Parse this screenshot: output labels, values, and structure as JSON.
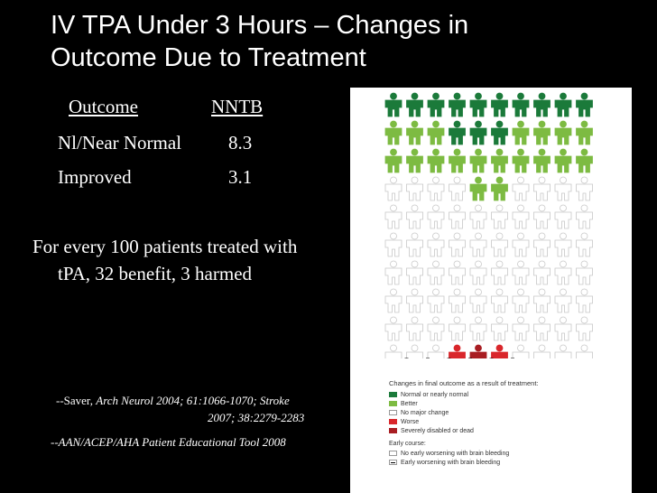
{
  "slide": {
    "title_line1": "IV TPA Under 3 Hours – Changes in",
    "title_line2": "Outcome Due to Treatment"
  },
  "table": {
    "headers": [
      "Outcome",
      "NNTB"
    ],
    "rows": [
      {
        "label": "Nl/Near Normal",
        "value": "8.3"
      },
      {
        "label": "Improved",
        "value": "3.1"
      }
    ]
  },
  "summary": "For every 100 patients treated with tPA, 32 benefit, 3 harmed",
  "citations": {
    "c1_prefix": "--Saver, ",
    "c1_italic": "Arch Neurol 2004; 61:1066-1070; Stroke",
    "c1_line2": "2007; 38:2279-2283",
    "c2": "--AAN/ACEP/AHA Patient Educational Tool 2008"
  },
  "figure": {
    "colors": {
      "normal": "#1b7a3a",
      "better": "#7dbb42",
      "nochange": "#ffffff",
      "worse": "#d9262b",
      "severe": "#a81d22"
    },
    "legend": {
      "heading": "Changes in final outcome as a result of treatment:",
      "items": [
        {
          "label": "Normal or nearly normal",
          "color": "#1b7a3a"
        },
        {
          "label": "Better",
          "color": "#7dbb42"
        },
        {
          "label": "No major change",
          "color": "#ffffff"
        },
        {
          "label": "Worse",
          "color": "#d9262b"
        },
        {
          "label": "Severely disabled or dead",
          "color": "#a81d22"
        }
      ],
      "early_heading": "Early course:",
      "early_items": [
        {
          "label": "No early worsening with brain bleeding"
        },
        {
          "label": "Early worsening with brain bleeding"
        }
      ]
    }
  }
}
